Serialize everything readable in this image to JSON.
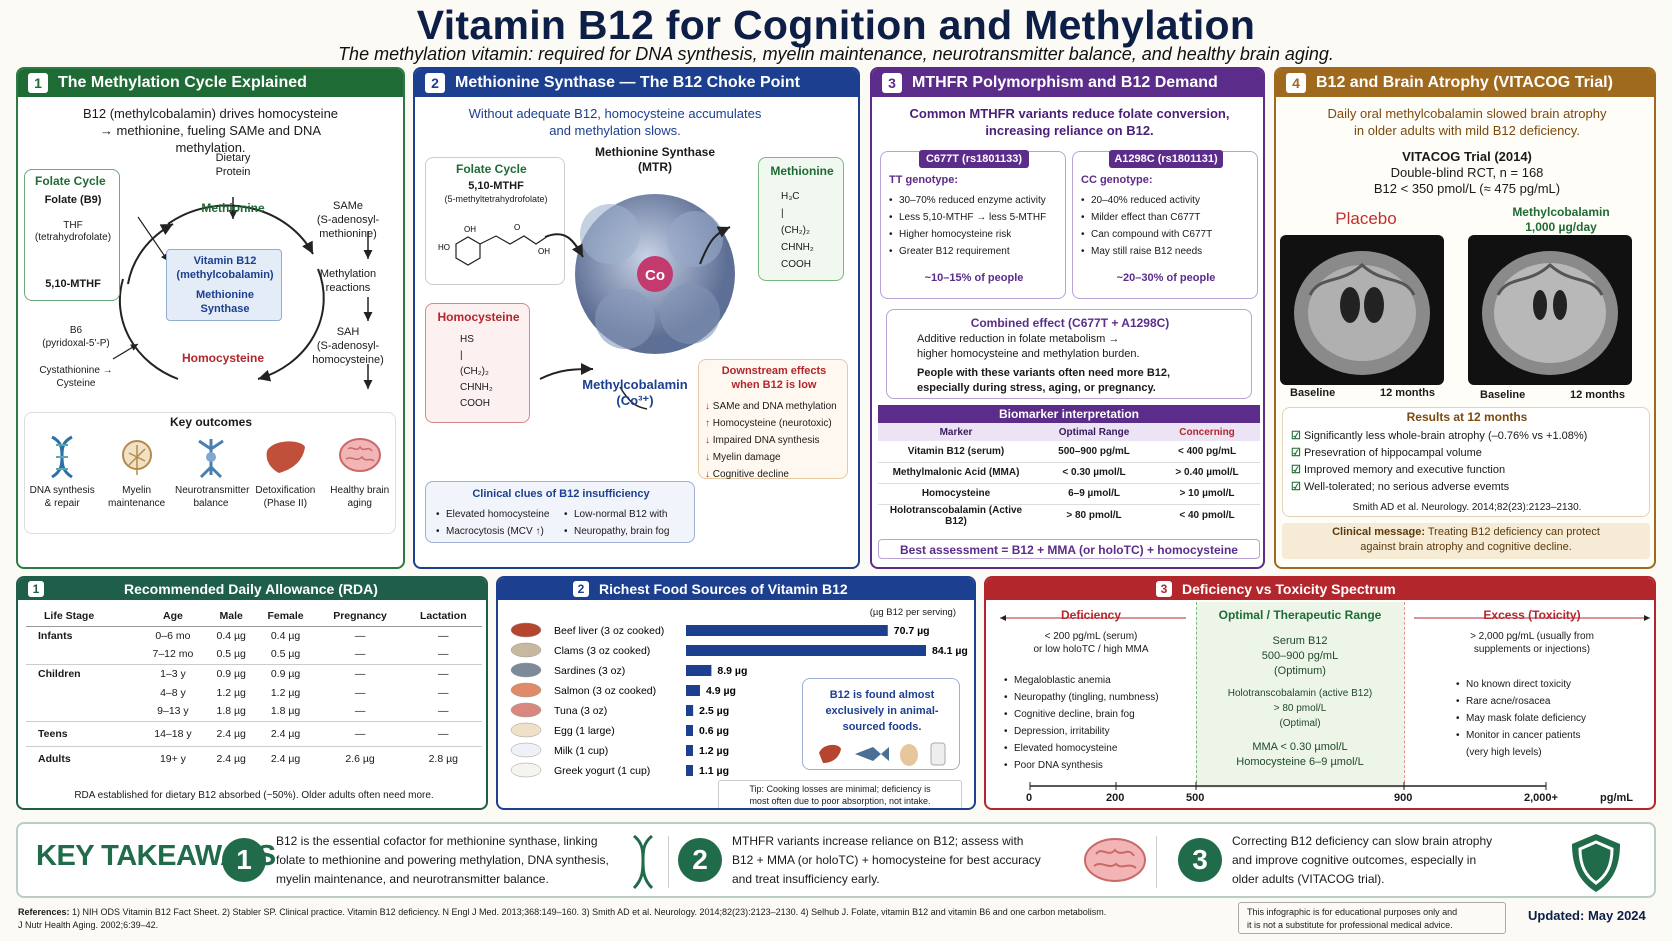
{
  "header": {
    "title": "Vitamin B12 for Cognition and Methylation",
    "subtitle": "The methylation vitamin: required for DNA synthesis, myelin maintenance, neurotransmitter balance, and healthy brain aging."
  },
  "colors": {
    "green": "#1f6b35",
    "blue": "#1d3f8f",
    "purple": "#5b2c8a",
    "gold": "#a06a1e",
    "red": "#b3262c",
    "teal": "#1f5e4a"
  },
  "p1": {
    "num": "1",
    "title": "The Methylation Cycle Explained",
    "intro": "B12 (methylcobalamin) drives homocysteine → methionine, fueling SAMe and DNA methylation.",
    "dietary": "Dietary\nProtein",
    "folate_title": "Folate Cycle",
    "folate_b9": "Folate (B9)",
    "thf": "THF\n(tetrahydrofolate)",
    "mthf": "5,10-MTHF",
    "methionine": "Methionine",
    "b12": "Vitamin B12\n(methylcobalamin)",
    "ms": "Methionine\nSynthase",
    "homocysteine": "Homocysteine",
    "same": "SAMe\n(S-adenosyl-\nmethionine)",
    "meth_reactions": "Methylation\nreactions",
    "sah": "SAH\n(S-adenosyl-\nhomocysteine)",
    "b6": "B6\n(pyridoxal-5'-P)",
    "cysta": "Cystathionine →\nCysteine",
    "key_title": "Key outcomes",
    "outcomes": [
      {
        "icon": "dna-icon",
        "label": "DNA synthesis\n& repair"
      },
      {
        "icon": "myelin-icon",
        "label": "Myelin\nmaintenance"
      },
      {
        "icon": "neuron-icon",
        "label": "Neurotransmitter\nbalance"
      },
      {
        "icon": "liver-icon",
        "label": "Detoxification\n(Phase II)"
      },
      {
        "icon": "brain-icon",
        "label": "Healthy brain\naging"
      }
    ]
  },
  "p2": {
    "num": "2",
    "title": "Methionine Synthase — The B12 Choke Point",
    "intro": "Without adequate B12, homocysteine accumulates\nand methylation slows.",
    "folate_title": "Folate Cycle",
    "mthf": "5,10-MTHF",
    "mthf_full": "(5-methyltetrahydrofolate)",
    "enzyme": "Methionine Synthase\n(MTR)",
    "co": "Co",
    "methionine": "Methionine",
    "homocysteine": "Homocysteine",
    "mecbl": "Methylcobalamin\n(Co³⁺)",
    "down_title": "Downstream effects\nwhen B12 is low",
    "down": [
      "SAMe and DNA methylation",
      "Homocysteine (neurotoxic)",
      "Impaired DNA synthesis",
      "Myelin damage",
      "Cognitive decline"
    ],
    "clues_title": "Clinical clues of B12 insufficiency",
    "clues": [
      "Elevated homocysteine",
      "Low-normal B12 with",
      "Macrocytosis (MCV ↑)",
      "Neuropathy, brain fog"
    ]
  },
  "p3": {
    "num": "3",
    "title": "MTHFR Polymorphism and B12 Demand",
    "intro": "Common MTHFR variants reduce folate conversion,\nincreasing reliance on B12.",
    "v1": {
      "tag": "C677T (rs1801133)",
      "geno": "TT genotype:",
      "items": [
        "30–70% reduced enzyme activity",
        "Less 5,10-MTHF → less 5-MTHF",
        "Higher homocysteine risk",
        "Greater B12 requirement"
      ],
      "pct": "~10–15% of people"
    },
    "v2": {
      "tag": "A1298C (rs1801131)",
      "geno": "CC genotype:",
      "items": [
        "20–40% reduced activity",
        "Milder effect than C677T",
        "Can compound with C677T",
        "May still raise B12 needs"
      ],
      "pct": "~20–30% of people"
    },
    "comb_title": "Combined effect (C677T + A1298C)",
    "comb_1": "Additive reduction in folate metabolism →\nhigher homocysteine and methylation burden.",
    "comb_2": "People with these variants often need more B12,\nespecially during stress, aging, or pregnancy.",
    "bio_title": "Biomarker interpretation",
    "bio_head": [
      "Marker",
      "Optimal Range",
      "Concerning"
    ],
    "bio_rows": [
      [
        "Vitamin B12 (serum)",
        "500–900 pg/mL",
        "< 400 pg/mL"
      ],
      [
        "Methylmalonic Acid (MMA)",
        "< 0.30 µmol/L",
        "> 0.40 µmol/L"
      ],
      [
        "Homocysteine",
        "6–9 µmol/L",
        "> 10 µmol/L"
      ],
      [
        "Holotranscobalamin (Active B12)",
        "> 80 pmol/L",
        "< 40 pmol/L"
      ]
    ],
    "best": "Best assessment = B12 + MMA (or holoTC) + homocysteine"
  },
  "p4": {
    "num": "4",
    "title": "B12 and Brain Atrophy (VITACOG Trial)",
    "intro": "Daily oral methylcobalamin slowed brain atrophy\nin older adults with mild B12 deficiency.",
    "trial": "VITACOG Trial (2014)",
    "design": "Double-blind RCT, n = 168",
    "criteria": "B12 < 350 pmol/L (≈ 475 pg/mL)",
    "placebo": "Placebo",
    "treat": "Methylcobalamin\n1,000 µg/day",
    "baseline": "Baseline",
    "months": "12 months",
    "results_title": "Results at 12 months",
    "results": [
      "Significantly less whole-brain atrophy (–0.76% vs +1.08%)",
      "Presevration of hippocampal volume",
      "Improved memory and executive function",
      "Well-tolerated; no serious adverse evemts"
    ],
    "cite": "Smith AD et al. Neurology. 2014;82(23):2123–2130.",
    "msg_b": "Clinical message:",
    "msg": " Treating B12 deficiency can protect\nagainst brain atrophy and cognitive decline."
  },
  "rda": {
    "num": "1",
    "title": "Recommended Daily Allowance (RDA)",
    "head": [
      "Life Stage",
      "Age",
      "Male",
      "Female",
      "Pregnancy",
      "Lactation"
    ],
    "rows": [
      [
        "Infants",
        "0–6 mo",
        "0.4 µg",
        "0.4 µg",
        "—",
        "—"
      ],
      [
        "",
        "7–12 mo",
        "0.5 µg",
        "0.5 µg",
        "—",
        "—"
      ],
      [
        "Children",
        "1–3 y",
        "0.9 µg",
        "0.9 µg",
        "—",
        "—"
      ],
      [
        "",
        "4–8 y",
        "1.2 µg",
        "1.2 µg",
        "—",
        "—"
      ],
      [
        "",
        "9–13 y",
        "1.8 µg",
        "1.8 µg",
        "—",
        "—"
      ],
      [
        "Teens",
        "14–18 y",
        "2.4 µg",
        "2.4 µg",
        "—",
        "—"
      ],
      [
        "Adults",
        "19+ y",
        "2.4 µg",
        "2.4 µg",
        "2.6 µg",
        "2.8 µg"
      ]
    ],
    "note": "RDA established for dietary B12 absorbed (~50%). Older adults often need more."
  },
  "foods": {
    "num": "2",
    "title": "Richest Food Sources of Vitamin B12",
    "unit": "(µg B12 per serving)",
    "items": [
      {
        "name": "Beef liver (3 oz cooked)",
        "value": 70.7,
        "label": "70.7 µg"
      },
      {
        "name": "Clams (3 oz cooked)",
        "value": 84.1,
        "label": "84.1 µg"
      },
      {
        "name": "Sardines (3 oz)",
        "value": 8.9,
        "label": "8.9 µg"
      },
      {
        "name": "Salmon (3 oz cooked)",
        "value": 4.9,
        "label": "4.9 µg"
      },
      {
        "name": "Tuna (3 oz)",
        "value": 2.5,
        "label": "2.5 µg"
      },
      {
        "name": "Egg (1 large)",
        "value": 0.6,
        "label": "0.6 µg"
      },
      {
        "name": "Milk (1 cup)",
        "value": 1.2,
        "label": "1.2 µg"
      },
      {
        "name": "Greek yogurt (1 cup)",
        "value": 1.1,
        "label": "1.1 µg"
      }
    ],
    "callout": "B12 is found almost\nexclusively in animal-\nsourced foods.",
    "tip": "Tip: Cooking losses are minimal; deficiency is\nmost often due to poor absorption, not intake."
  },
  "spectrum": {
    "num": "3",
    "title": "Deficiency vs Toxicity Spectrum",
    "def": {
      "title": "Deficiency",
      "crit": "< 200 pg/mL (serum)\nor low holoTC / high MMA",
      "items": [
        "Megaloblastic anemia",
        "Neuropathy (tingling, numbness)",
        "Cognitive decline, brain fog",
        "Depression, irritability",
        "Elevated homocysteine",
        "Poor DNA synthesis"
      ]
    },
    "opt": {
      "title": "Optimal / Therapeutic Range",
      "serum": "Serum B12\n500–900 pg/mL\n(Optimum)",
      "holo": "Holotranscobalamin (active B12)\n> 80 pmol/L\n(Optimal)",
      "mma": "MMA < 0.30 µmol/L\nHomocysteine 6–9 µmol/L"
    },
    "exc": {
      "title": "Excess (Toxicity)",
      "crit": "> 2,000 pg/mL (usually from\nsupplements or injections)",
      "items": [
        "No known direct toxicity",
        "Rare acne/rosacea",
        "May mask folate deficiency",
        "Monitor in cancer patients\n(very high levels)"
      ]
    },
    "axis": [
      "0",
      "200",
      "500",
      "900",
      "2,000+"
    ],
    "axis_unit": "pg/mL"
  },
  "takeaways": {
    "title": "KEY TAKEAWAYS",
    "items": [
      {
        "num": "1",
        "text": "B12 is the essential cofactor for methionine synthase, linking\nfolate to methionine and powering methylation, DNA synthesis,\nmyelin maintenance, and neurotransmitter balance."
      },
      {
        "num": "2",
        "text": "MTHFR variants increase reliance on B12; assess with\nB12 + MMA (or holoTC) + homocysteine for best accuracy\nand treat insufficiency early."
      },
      {
        "num": "3",
        "text": "Correcting B12 deficiency can slow brain atrophy\nand improve cognitive outcomes, especially in\nolder adults (VITACOG trial)."
      }
    ]
  },
  "footer": {
    "refs_label": "References:",
    "refs": "1) NIH ODS Vitamin B12 Fact Sheet.  2) Stabler SP. Clinical practice. Vitamin B12 deficiency. N Engl J Med. 2013;368:149–160.  3) Smith AD et al. Neurology. 2014;82(23):2123–2130.  4) Selhub J. Folate, vitamin B12 and vitamin B6 and one carbon metabolism.\nJ Nutr Health Aging. 2002;6:39–42.",
    "disclaimer": "This infographic is for educational purposes only and\nit is not a substitute for professional medical advice.",
    "updated": "Updated: May 2024"
  }
}
